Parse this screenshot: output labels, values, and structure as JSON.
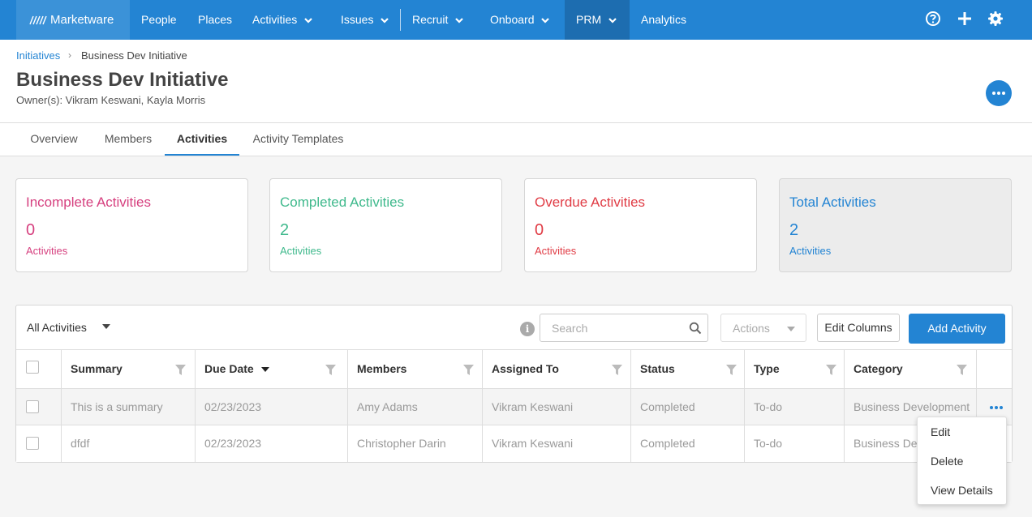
{
  "nav": {
    "brand": "Marketware",
    "items": [
      {
        "label": "People"
      },
      {
        "label": "Places"
      },
      {
        "label": "Activities"
      },
      {
        "label": "Issues"
      },
      {
        "label": "Recruit"
      },
      {
        "label": "Onboard"
      },
      {
        "label": "PRM"
      },
      {
        "label": "Analytics"
      }
    ],
    "icons": [
      "help-icon",
      "plus-icon",
      "gear-icon"
    ]
  },
  "breadcrumb": {
    "parent": "Initiatives",
    "separator": "›",
    "current": "Business Dev Initiative"
  },
  "header": {
    "title": "Business Dev Initiative",
    "owners": "Owner(s): Vikram Keswani, Kayla Morris"
  },
  "tabs": [
    {
      "label": "Overview"
    },
    {
      "label": "Members"
    },
    {
      "label": "Activities"
    },
    {
      "label": "Activity Templates"
    }
  ],
  "stats": [
    {
      "title": "Incomplete Activities",
      "value": "0",
      "unit": "Activities",
      "color": "#d6407f"
    },
    {
      "title": "Completed Activities",
      "value": "2",
      "unit": "Activities",
      "color": "#3fb98c"
    },
    {
      "title": "Overdue Activities",
      "value": "0",
      "unit": "Activities",
      "color": "#e03c45"
    },
    {
      "title": "Total Activities",
      "value": "2",
      "unit": "Activities",
      "color": "#2384d3"
    }
  ],
  "toolbar": {
    "filter": "All Activities",
    "search_placeholder": "Search",
    "actions_label": "Actions",
    "edit_columns": "Edit Columns",
    "add_activity": "Add Activity"
  },
  "table": {
    "columns": [
      "Summary",
      "Due Date",
      "Members",
      "Assigned To",
      "Status",
      "Type",
      "Category"
    ],
    "rows": [
      {
        "summary": "This is a summary",
        "due": "02/23/2023",
        "members": "Amy Adams",
        "assigned": "Vikram Keswani",
        "status": "Completed",
        "type": "To-do",
        "category": "Business Development"
      },
      {
        "summary": "dfdf",
        "due": "02/23/2023",
        "members": "Christopher Darin",
        "assigned": "Vikram Keswani",
        "status": "Completed",
        "type": "To-do",
        "category": "Business Development"
      }
    ]
  },
  "row_menu": {
    "items": [
      "Edit",
      "Delete",
      "View Details"
    ]
  }
}
